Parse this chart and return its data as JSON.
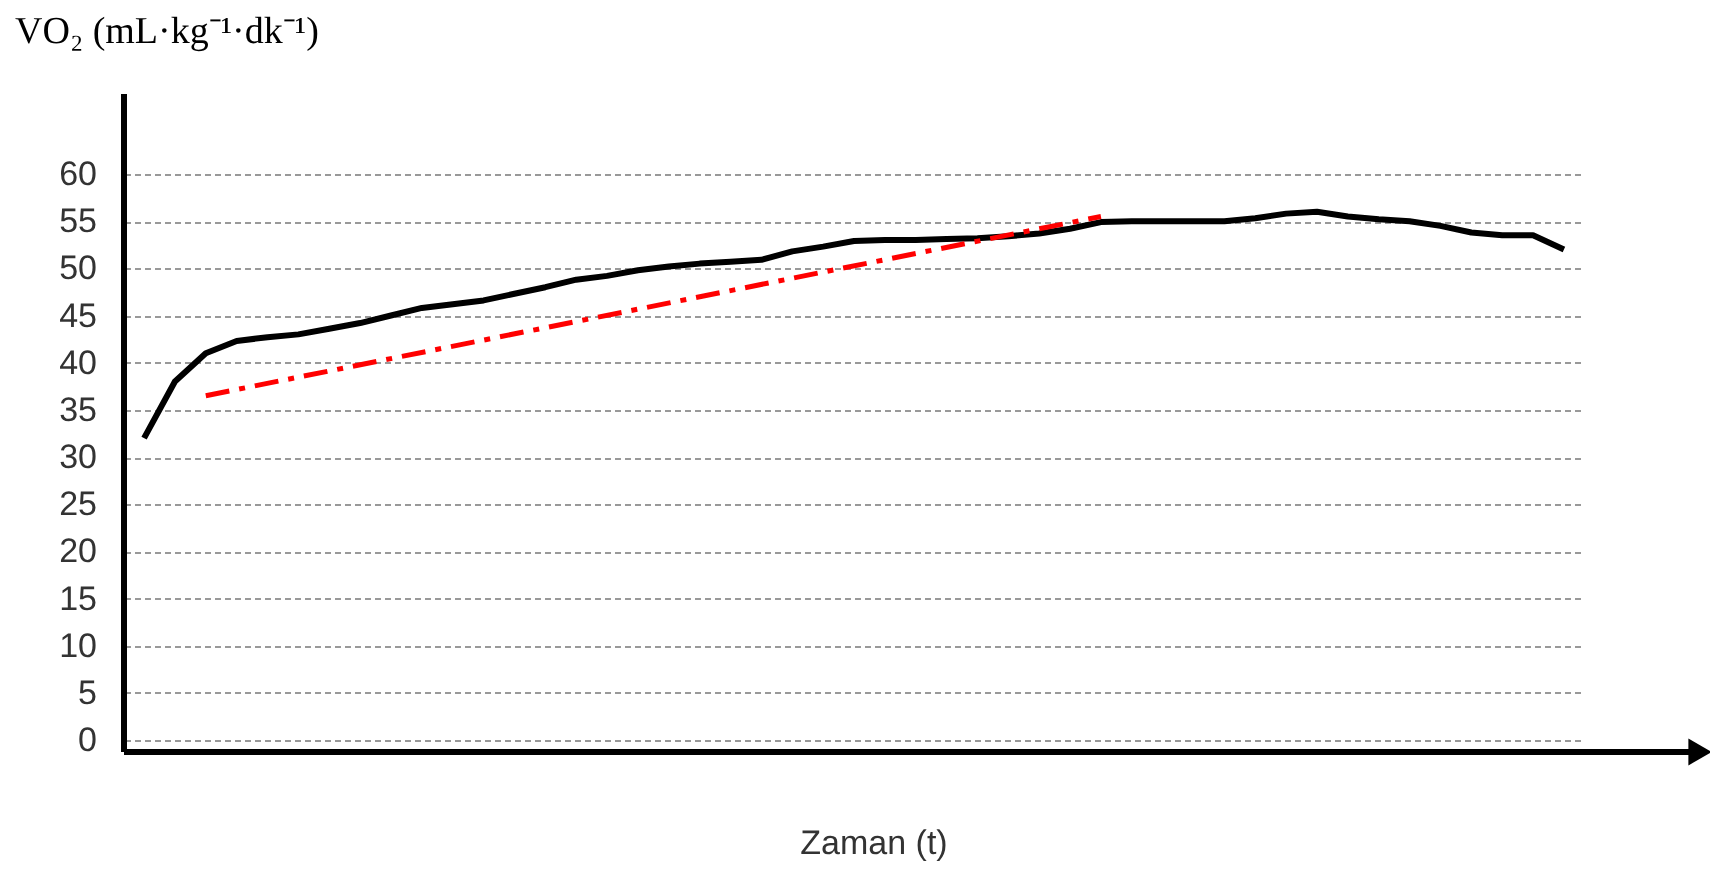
{
  "chart_data": {
    "type": "line",
    "xlabel": "Zaman (t)",
    "ylabel": "VO₂ (mL·kg⁻¹·dk⁻¹)",
    "categories": [
      null,
      null,
      null,
      null,
      null,
      null,
      null,
      null,
      null,
      null,
      null,
      null,
      null,
      null,
      null,
      null,
      null,
      null,
      null,
      null,
      null,
      null,
      null,
      null,
      null,
      null,
      null,
      null,
      null,
      null,
      null,
      null,
      null,
      null,
      null,
      null,
      null,
      null,
      null,
      null,
      null,
      null,
      null,
      null,
      null,
      null,
      null
    ],
    "series": [
      {
        "color": "#000000",
        "line_style": "solid",
        "values": [
          32,
          38,
          41,
          42.3,
          42.7,
          43,
          43.6,
          44.2,
          45,
          45.8,
          46.2,
          46.6,
          47.3,
          48,
          48.8,
          49.2,
          49.8,
          50.2,
          50.5,
          50.7,
          50.9,
          51.8,
          52.3,
          52.9,
          53,
          53,
          53.1,
          53.2,
          53.4,
          53.7,
          54.2,
          54.9,
          55,
          55,
          55,
          55,
          55.3,
          55.8,
          56,
          55.5,
          55.2,
          55,
          54.5,
          53.8,
          53.5,
          53.5,
          52
        ]
      },
      {
        "color": "#ff0000",
        "line_style": "dashed",
        "values": [
          null,
          null,
          36.5,
          null,
          null,
          null,
          null,
          null,
          null,
          null,
          null,
          null,
          null,
          null,
          null,
          null,
          null,
          null,
          null,
          null,
          null,
          null,
          null,
          null,
          null,
          null,
          null,
          null,
          null,
          null,
          null,
          55.5,
          null,
          null,
          null,
          null,
          null,
          null,
          null,
          null,
          null,
          null,
          null,
          null,
          null,
          null,
          null
        ]
      }
    ],
    "ylim": [
      0,
      60
    ],
    "yticks": [
      0,
      5,
      10,
      15,
      20,
      25,
      30,
      35,
      40,
      45,
      50,
      55,
      60
    ],
    "grid": "y",
    "marker": "none",
    "tick_labels": "y"
  }
}
